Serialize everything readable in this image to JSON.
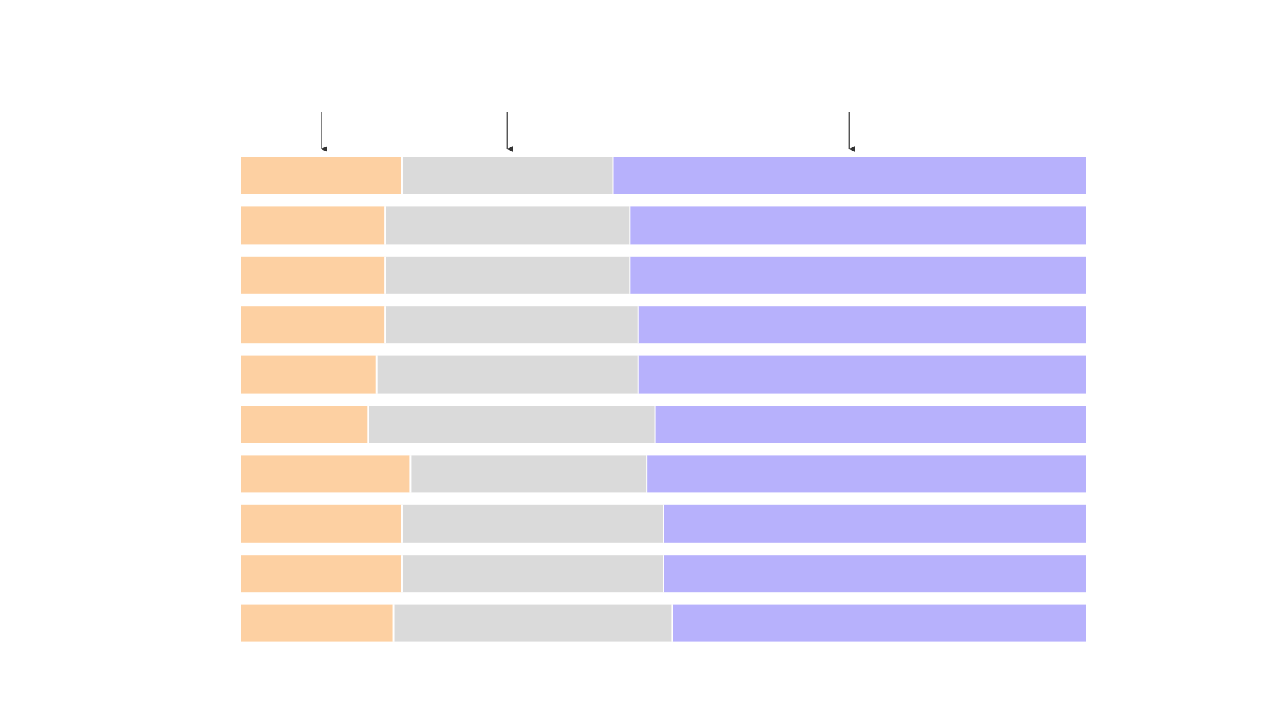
{
  "chart_data": {
    "type": "bar",
    "orientation": "horizontal",
    "stacking": "percent",
    "title": "",
    "xlabel": "",
    "ylabel": "",
    "xlim": [
      0,
      100
    ],
    "grid": false,
    "legend": "none",
    "categories": [
      "",
      "",
      "",
      "",
      "",
      "",
      "",
      "",
      "",
      ""
    ],
    "series": [
      {
        "color": "#fdd0a2",
        "values": [
          19,
          17,
          17,
          17,
          16,
          15,
          20,
          19,
          19,
          18
        ]
      },
      {
        "color": "#dadada",
        "values": [
          25,
          29,
          29,
          30,
          31,
          34,
          28,
          31,
          31,
          33
        ]
      },
      {
        "color": "#b7b1fc",
        "values": [
          56,
          54,
          54,
          53,
          53,
          51,
          52,
          50,
          50,
          49
        ]
      }
    ],
    "annotations": [
      {
        "type": "arrow",
        "row": 0,
        "series": 0
      },
      {
        "type": "arrow",
        "row": 0,
        "series": 1
      },
      {
        "type": "arrow",
        "row": 0,
        "series": 2
      }
    ]
  },
  "colors": {
    "segment_separator": "#ffffff",
    "arrow": "#333333",
    "baseline": "#d9d9d9"
  }
}
